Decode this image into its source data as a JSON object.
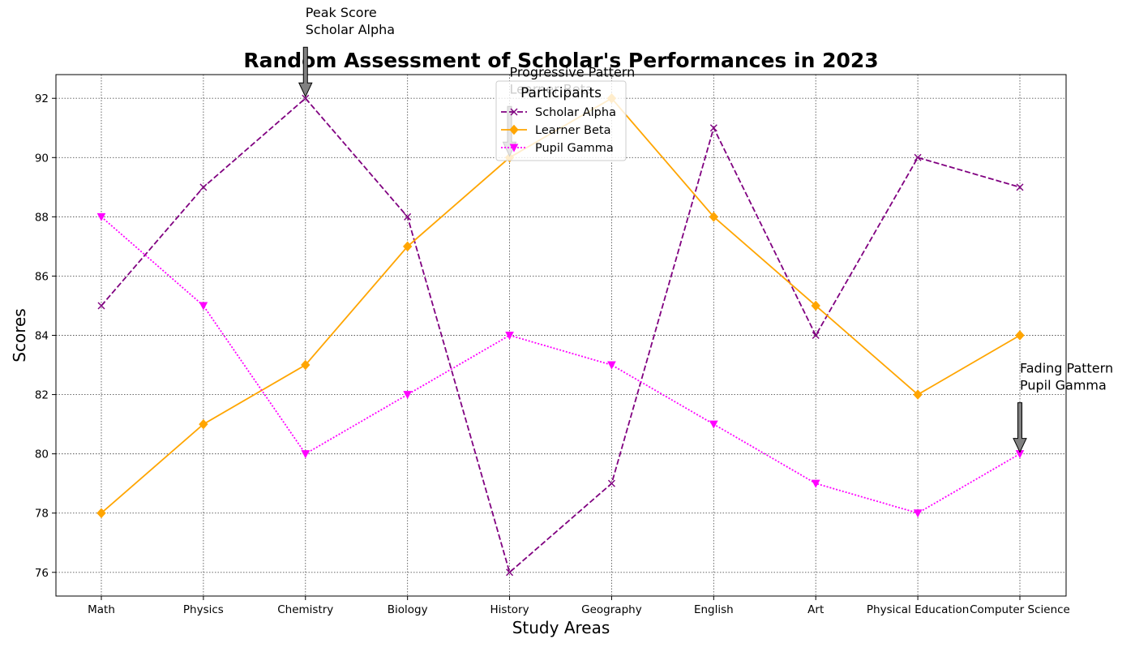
{
  "chart_data": {
    "type": "line",
    "title": "Random Assessment of Scholar's Performances in 2023",
    "xlabel": "Study Areas",
    "ylabel": "Scores",
    "categories": [
      "Math",
      "Physics",
      "Chemistry",
      "Biology",
      "History",
      "Geography",
      "English",
      "Art",
      "Physical Education",
      "Computer Science"
    ],
    "ylim": [
      75.2,
      92.8
    ],
    "yticks": [
      76,
      78,
      80,
      82,
      84,
      86,
      88,
      90,
      92
    ],
    "grid": true,
    "legend": {
      "title": "Participants",
      "placement": "top-center"
    },
    "series": [
      {
        "name": "Scholar Alpha",
        "values": [
          85,
          89,
          92,
          88,
          76,
          79,
          91,
          84,
          90,
          89
        ],
        "color": "#800080",
        "line_style": "dashed",
        "marker": "x"
      },
      {
        "name": "Learner Beta",
        "values": [
          78,
          81,
          83,
          87,
          90,
          92,
          88,
          85,
          82,
          84
        ],
        "color": "#FFA500",
        "line_style": "solid",
        "marker": "diamond"
      },
      {
        "name": "Pupil Gamma",
        "values": [
          88,
          85,
          80,
          82,
          84,
          83,
          81,
          79,
          78,
          80
        ],
        "color": "#FF00FF",
        "line_style": "dotted",
        "marker": "triangle-down"
      }
    ],
    "annotations": [
      {
        "lines": [
          "Peak Score",
          "Scholar Alpha"
        ],
        "category": "Chemistry",
        "value": 92
      },
      {
        "lines": [
          "Progressive Pattern",
          "Learner Beta"
        ],
        "category": "History",
        "value": 90
      },
      {
        "lines": [
          "Fading Pattern",
          "Pupil Gamma"
        ],
        "category": "Computer Science",
        "value": 80
      }
    ]
  }
}
